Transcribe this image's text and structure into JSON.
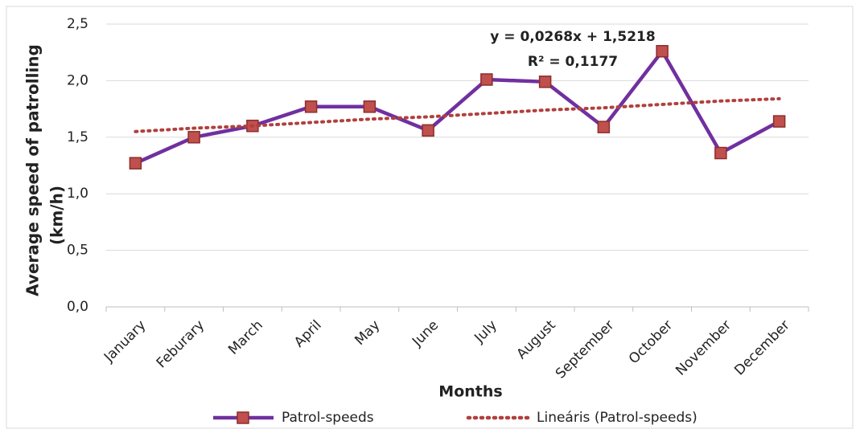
{
  "chart_data": {
    "type": "line",
    "x_label": "Months",
    "y_label": [
      "Average speed of patrolling",
      "(km/h)"
    ],
    "annotation": [
      "y = 0,0268x + 1,5218",
      "R² = 0,1177"
    ],
    "categories": [
      "January",
      "Feburary",
      "March",
      "April",
      "May",
      "June",
      "July",
      "August",
      "September",
      "October",
      "November",
      "December"
    ],
    "series": [
      {
        "name": "Patrol-speeds",
        "color": "#7030a0",
        "marker_color": "#c0504d",
        "values": [
          1.27,
          1.5,
          1.6,
          1.77,
          1.77,
          1.56,
          2.01,
          1.99,
          1.59,
          2.26,
          1.36,
          1.64
        ]
      },
      {
        "name": "Lineáris (Patrol-speeds)",
        "color": "#b0403d",
        "dotted": true,
        "values": [
          1.55,
          1.58,
          1.6,
          1.63,
          1.66,
          1.68,
          1.71,
          1.74,
          1.76,
          1.79,
          1.82,
          1.84
        ]
      }
    ],
    "ylim": [
      0,
      2.5
    ],
    "yticks": [
      {
        "value": 0,
        "label": "0,0"
      },
      {
        "value": 0.5,
        "label": "0,5"
      },
      {
        "value": 1,
        "label": "1,0"
      },
      {
        "value": 1.5,
        "label": "1,5"
      },
      {
        "value": 2,
        "label": "2,0"
      },
      {
        "value": 2.5,
        "label": "2,5"
      }
    ],
    "grid": true
  }
}
